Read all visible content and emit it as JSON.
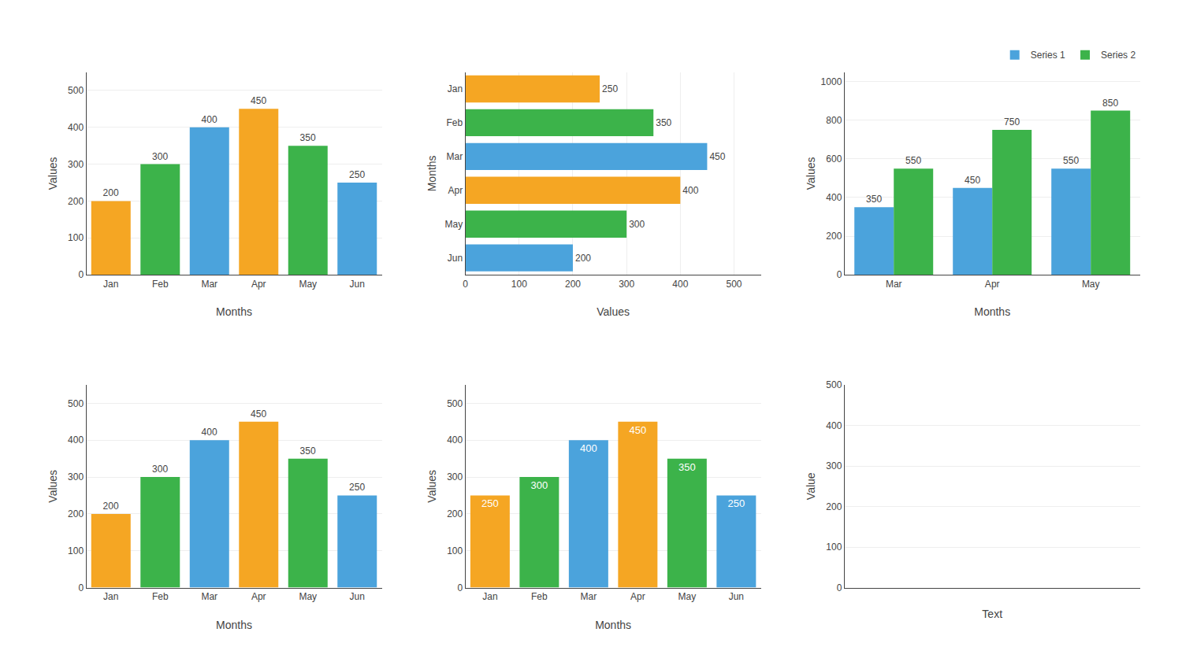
{
  "chart_data": [
    {
      "type": "bar",
      "categories": [
        "Jan",
        "Feb",
        "Mar",
        "Apr",
        "May",
        "Jun"
      ],
      "values": [
        200,
        300,
        400,
        450,
        350,
        250
      ],
      "colors": [
        "#F5A623",
        "#3CB34A",
        "#4BA3DC",
        "#F5A623",
        "#3CB34A",
        "#4BA3DC"
      ],
      "xlabel": "Months",
      "ylabel": "Values",
      "ylim": [
        0,
        550
      ],
      "yticks": [
        0,
        100,
        200,
        300,
        400,
        500
      ],
      "grid": true,
      "data_labels": true
    },
    {
      "type": "bar",
      "orientation": "horizontal",
      "categories": [
        "Jun",
        "May",
        "Apr",
        "Mar",
        "Feb",
        "Jan"
      ],
      "values": [
        200,
        300,
        400,
        450,
        350,
        250
      ],
      "colors": [
        "#4BA3DC",
        "#3CB34A",
        "#F5A623",
        "#4BA3DC",
        "#3CB34A",
        "#F5A623"
      ],
      "xlabel": "Values",
      "ylabel": "Months",
      "xlim": [
        0,
        550
      ],
      "xticks": [
        0,
        100,
        200,
        300,
        400,
        500
      ],
      "grid": true,
      "data_labels": true
    },
    {
      "type": "bar",
      "categories": [
        "Mar",
        "Apr",
        "May"
      ],
      "series": [
        {
          "name": "Series 1",
          "color": "#4BA3DC",
          "values": [
            350,
            450,
            550
          ]
        },
        {
          "name": "Series 2",
          "color": "#3CB34A",
          "values": [
            550,
            750,
            850
          ]
        }
      ],
      "xlabel": "Months",
      "ylabel": "Values",
      "ylim": [
        0,
        1050
      ],
      "yticks": [
        0,
        200,
        400,
        600,
        800,
        1000
      ],
      "grid": true,
      "data_labels": true,
      "legend": "upper right"
    },
    {
      "type": "bar",
      "categories": [
        "Jan",
        "Feb",
        "Mar",
        "Apr",
        "May",
        "Jun"
      ],
      "values": [
        200,
        300,
        400,
        450,
        350,
        250
      ],
      "colors": [
        "#F5A623",
        "#3CB34A",
        "#4BA3DC",
        "#F5A623",
        "#3CB34A",
        "#4BA3DC"
      ],
      "xlabel": "Months",
      "ylabel": "Values",
      "ylim": [
        0,
        550
      ],
      "yticks": [
        0,
        100,
        200,
        300,
        400,
        500
      ],
      "grid": true,
      "data_labels": true
    },
    {
      "type": "bar",
      "categories": [
        "Jan",
        "Feb",
        "Mar",
        "Apr",
        "May",
        "Jun"
      ],
      "values": [
        250,
        300,
        400,
        450,
        350,
        250
      ],
      "colors": [
        "#F5A623",
        "#3CB34A",
        "#4BA3DC",
        "#F5A623",
        "#3CB34A",
        "#4BA3DC"
      ],
      "xlabel": "Months",
      "ylabel": "Values",
      "ylim": [
        0,
        550
      ],
      "yticks": [
        0,
        100,
        200,
        300,
        400,
        500
      ],
      "grid": true,
      "data_labels": true
    },
    {
      "type": "bar",
      "categories": [],
      "values": [],
      "xlabel": "Text",
      "ylabel": "Value",
      "ylim": [
        0,
        500
      ],
      "yticks": [
        0,
        100,
        200,
        300,
        400,
        500
      ],
      "grid": true,
      "tick_labels": "y"
    }
  ]
}
